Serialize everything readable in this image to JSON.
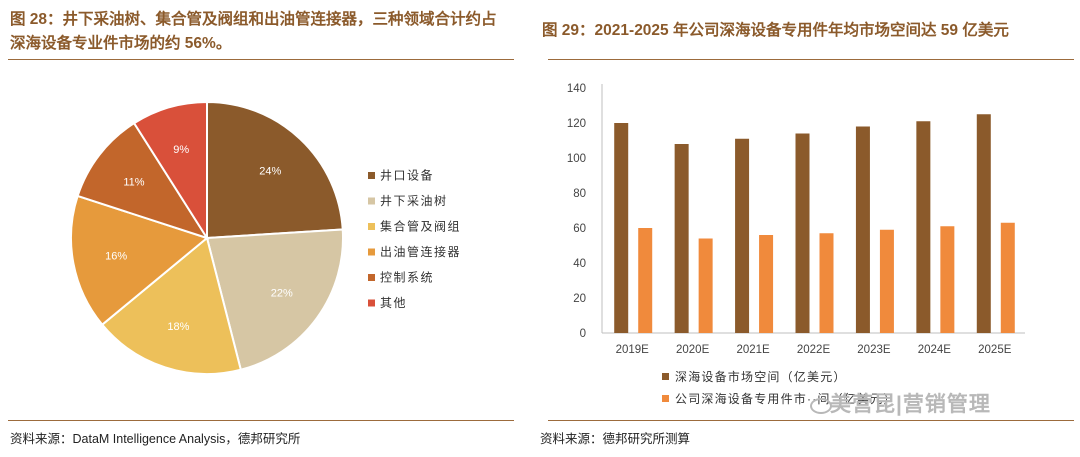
{
  "left": {
    "title": "图 28：井下采油树、集合管及阀组和出油管连接器，三种领域合计约占深海设备专业件市场的约 56%。",
    "source": "资料来源：DataM Intelligence Analysis，德邦研究所"
  },
  "right": {
    "title": "图 29：2021-2025 年公司深海设备专用件年均市场空间达 59 亿美元",
    "source": "资料来源：德邦研究所测算"
  },
  "watermark": "美营昆|营销管理",
  "chart_data": [
    {
      "type": "pie",
      "title": "",
      "legend_position": "right",
      "categories": [
        "井口设备",
        "井下采油树",
        "集合管及阀组",
        "出油管连接器",
        "控制系统",
        "其他"
      ],
      "values": [
        24,
        22,
        18,
        16,
        11,
        9
      ],
      "value_labels": [
        "24%",
        "22%",
        "18%",
        "16%",
        "11%",
        "9%"
      ],
      "colors": [
        "#8b5a2b",
        "#d6c6a4",
        "#edc05a",
        "#e69a3c",
        "#c2662b",
        "#d9503a"
      ]
    },
    {
      "type": "bar",
      "title": "",
      "categories": [
        "2019E",
        "2020E",
        "2021E",
        "2022E",
        "2023E",
        "2024E",
        "2025E"
      ],
      "series": [
        {
          "name": "深海设备市场空间（亿美元）",
          "values": [
            120,
            108,
            111,
            114,
            118,
            121,
            125
          ],
          "color": "#8b5a2b"
        },
        {
          "name": "公司深海设备专用件市场空间",
          "values": [
            60,
            54,
            56,
            57,
            59,
            61,
            63
          ],
          "color": "#f08a3c"
        }
      ],
      "legend_labels": [
        "深海设备市场空间（亿美元）",
        "公司深海设备专用件市··间（亿美元）"
      ],
      "ylim": [
        0,
        140
      ],
      "yticks": [
        0,
        20,
        40,
        60,
        80,
        100,
        120,
        140
      ],
      "grid": false,
      "legend_position": "bottom"
    }
  ]
}
